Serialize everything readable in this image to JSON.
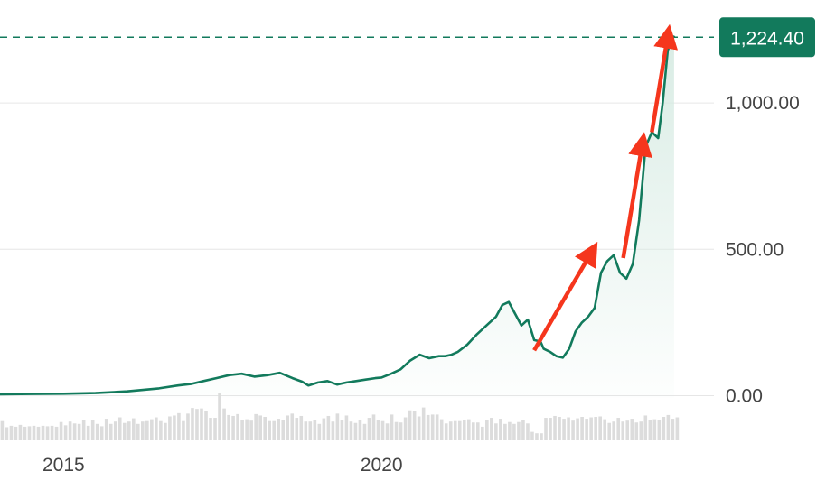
{
  "chart_data": {
    "type": "line",
    "title": "",
    "xlabel": "",
    "ylabel": "",
    "x_tick_labels": [
      "2015",
      "2020"
    ],
    "x_ticks": [
      2015.0,
      2020.0
    ],
    "xlim": [
      2014.0,
      2024.8
    ],
    "y_tick_labels": [
      "0.00",
      "500.00",
      "1,000.00"
    ],
    "y_ticks": [
      0,
      500,
      1000
    ],
    "ylim": [
      -60,
      1290
    ],
    "grid": true,
    "last_value": 1224.4,
    "last_value_label": "1,224.40",
    "colors": {
      "line": "#127a5c",
      "area_top": "#d7ebe3",
      "grid": "#e6e6e6",
      "ref_line": "#127a5c",
      "badge_bg": "#127a5c",
      "badge_text": "#ffffff",
      "volume": "#dcdcdc",
      "arrow": "#f5361d",
      "tick_text": "#444444"
    },
    "series": [
      {
        "x": [
          2014.0,
          2014.5,
          2015.0,
          2015.5,
          2016.0,
          2016.5,
          2016.8,
          2017.0,
          2017.2,
          2017.4,
          2017.6,
          2017.8,
          2018.0,
          2018.2,
          2018.4,
          2018.6,
          2018.75,
          2018.85,
          2019.0,
          2019.15,
          2019.3,
          2019.45,
          2019.6,
          2019.75,
          2019.9,
          2020.0,
          2020.15,
          2020.3,
          2020.45,
          2020.6,
          2020.75,
          2020.9,
          2021.0,
          2021.1,
          2021.2,
          2021.35,
          2021.5,
          2021.65,
          2021.8,
          2021.9,
          2022.0,
          2022.1,
          2022.2,
          2022.3,
          2022.4,
          2022.5,
          2022.55,
          2022.65,
          2022.75,
          2022.85,
          2022.95,
          2023.05,
          2023.15,
          2023.25,
          2023.35,
          2023.45,
          2023.55,
          2023.65,
          2023.75,
          2023.85,
          2023.95,
          2024.05,
          2024.15,
          2024.25,
          2024.35,
          2024.42,
          2024.5,
          2024.6
        ],
        "values": [
          5,
          6,
          7,
          9,
          15,
          25,
          35,
          40,
          50,
          60,
          70,
          75,
          65,
          70,
          78,
          60,
          48,
          35,
          45,
          50,
          38,
          45,
          50,
          55,
          60,
          62,
          75,
          90,
          120,
          140,
          128,
          135,
          135,
          140,
          150,
          175,
          210,
          240,
          270,
          310,
          320,
          280,
          240,
          260,
          190,
          185,
          160,
          150,
          135,
          130,
          160,
          220,
          250,
          270,
          300,
          420,
          460,
          480,
          420,
          400,
          450,
          600,
          850,
          900,
          880,
          1000,
          1180,
          1230
        ]
      }
    ],
    "volume_bars": [
      41,
      28,
      31,
      29,
      33,
      29,
      30,
      31,
      29,
      31,
      30,
      31,
      29,
      39,
      32,
      40,
      36,
      35,
      43,
      31,
      44,
      35,
      30,
      46,
      35,
      40,
      49,
      37,
      40,
      47,
      35,
      40,
      41,
      45,
      49,
      41,
      37,
      51,
      53,
      58,
      41,
      57,
      69,
      67,
      68,
      63,
      48,
      48,
      100,
      68,
      54,
      52,
      56,
      43,
      45,
      42,
      56,
      53,
      50,
      41,
      41,
      46,
      44,
      53,
      57,
      48,
      52,
      40,
      40,
      43,
      35,
      47,
      52,
      40,
      57,
      44,
      53,
      40,
      37,
      44,
      35,
      48,
      55,
      43,
      41,
      36,
      55,
      39,
      38,
      49,
      64,
      63,
      51,
      70,
      54,
      55,
      55,
      45,
      36,
      40,
      41,
      41,
      44,
      45,
      38,
      38,
      29,
      43,
      48,
      36,
      46,
      35,
      39,
      35,
      39,
      43,
      36,
      18,
      15,
      15,
      48,
      48,
      52,
      50,
      46,
      49,
      42,
      47,
      50,
      46,
      49,
      50,
      51,
      45,
      37,
      40,
      48,
      40,
      42,
      46,
      38,
      40,
      53,
      44,
      45,
      43,
      50,
      54,
      46,
      49
    ],
    "annotations": [
      {
        "type": "arrow",
        "from": [
          2022.4,
          155
        ],
        "to": [
          2023.3,
          490
        ]
      },
      {
        "type": "arrow",
        "from": [
          2023.8,
          470
        ],
        "to": [
          2024.1,
          860
        ]
      },
      {
        "type": "arrow",
        "from": [
          2024.25,
          900
        ],
        "to": [
          2024.5,
          1228
        ]
      }
    ]
  }
}
